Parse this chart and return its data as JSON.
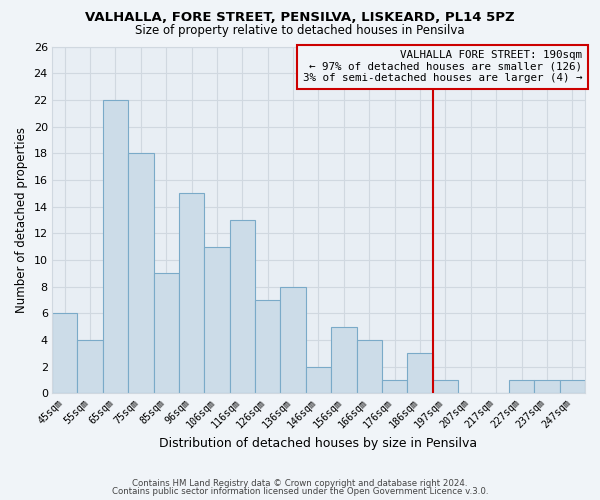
{
  "title": "VALHALLA, FORE STREET, PENSILVA, LISKEARD, PL14 5PZ",
  "subtitle": "Size of property relative to detached houses in Pensilva",
  "xlabel": "Distribution of detached houses by size in Pensilva",
  "ylabel": "Number of detached properties",
  "bar_labels": [
    "45sqm",
    "55sqm",
    "65sqm",
    "75sqm",
    "85sqm",
    "96sqm",
    "106sqm",
    "116sqm",
    "126sqm",
    "136sqm",
    "146sqm",
    "156sqm",
    "166sqm",
    "176sqm",
    "186sqm",
    "197sqm",
    "207sqm",
    "217sqm",
    "227sqm",
    "237sqm",
    "247sqm"
  ],
  "bar_values": [
    6,
    4,
    22,
    18,
    9,
    15,
    11,
    13,
    7,
    8,
    2,
    5,
    4,
    1,
    3,
    1,
    0,
    0,
    1,
    1,
    1
  ],
  "bar_color": "#ccdce8",
  "bar_edge_color": "#7aaac8",
  "vline_bar_index": 14,
  "vline_color": "#cc0000",
  "annotation_title": "VALHALLA FORE STREET: 190sqm",
  "annotation_line1": "← 97% of detached houses are smaller (126)",
  "annotation_line2": "3% of semi-detached houses are larger (4) →",
  "ylim": [
    0,
    26
  ],
  "yticks": [
    0,
    2,
    4,
    6,
    8,
    10,
    12,
    14,
    16,
    18,
    20,
    22,
    24,
    26
  ],
  "footer1": "Contains HM Land Registry data © Crown copyright and database right 2024.",
  "footer2": "Contains public sector information licensed under the Open Government Licence v.3.0.",
  "background_color": "#f0f4f8",
  "plot_bg_color": "#e8eef4",
  "grid_color": "#d0d8e0"
}
